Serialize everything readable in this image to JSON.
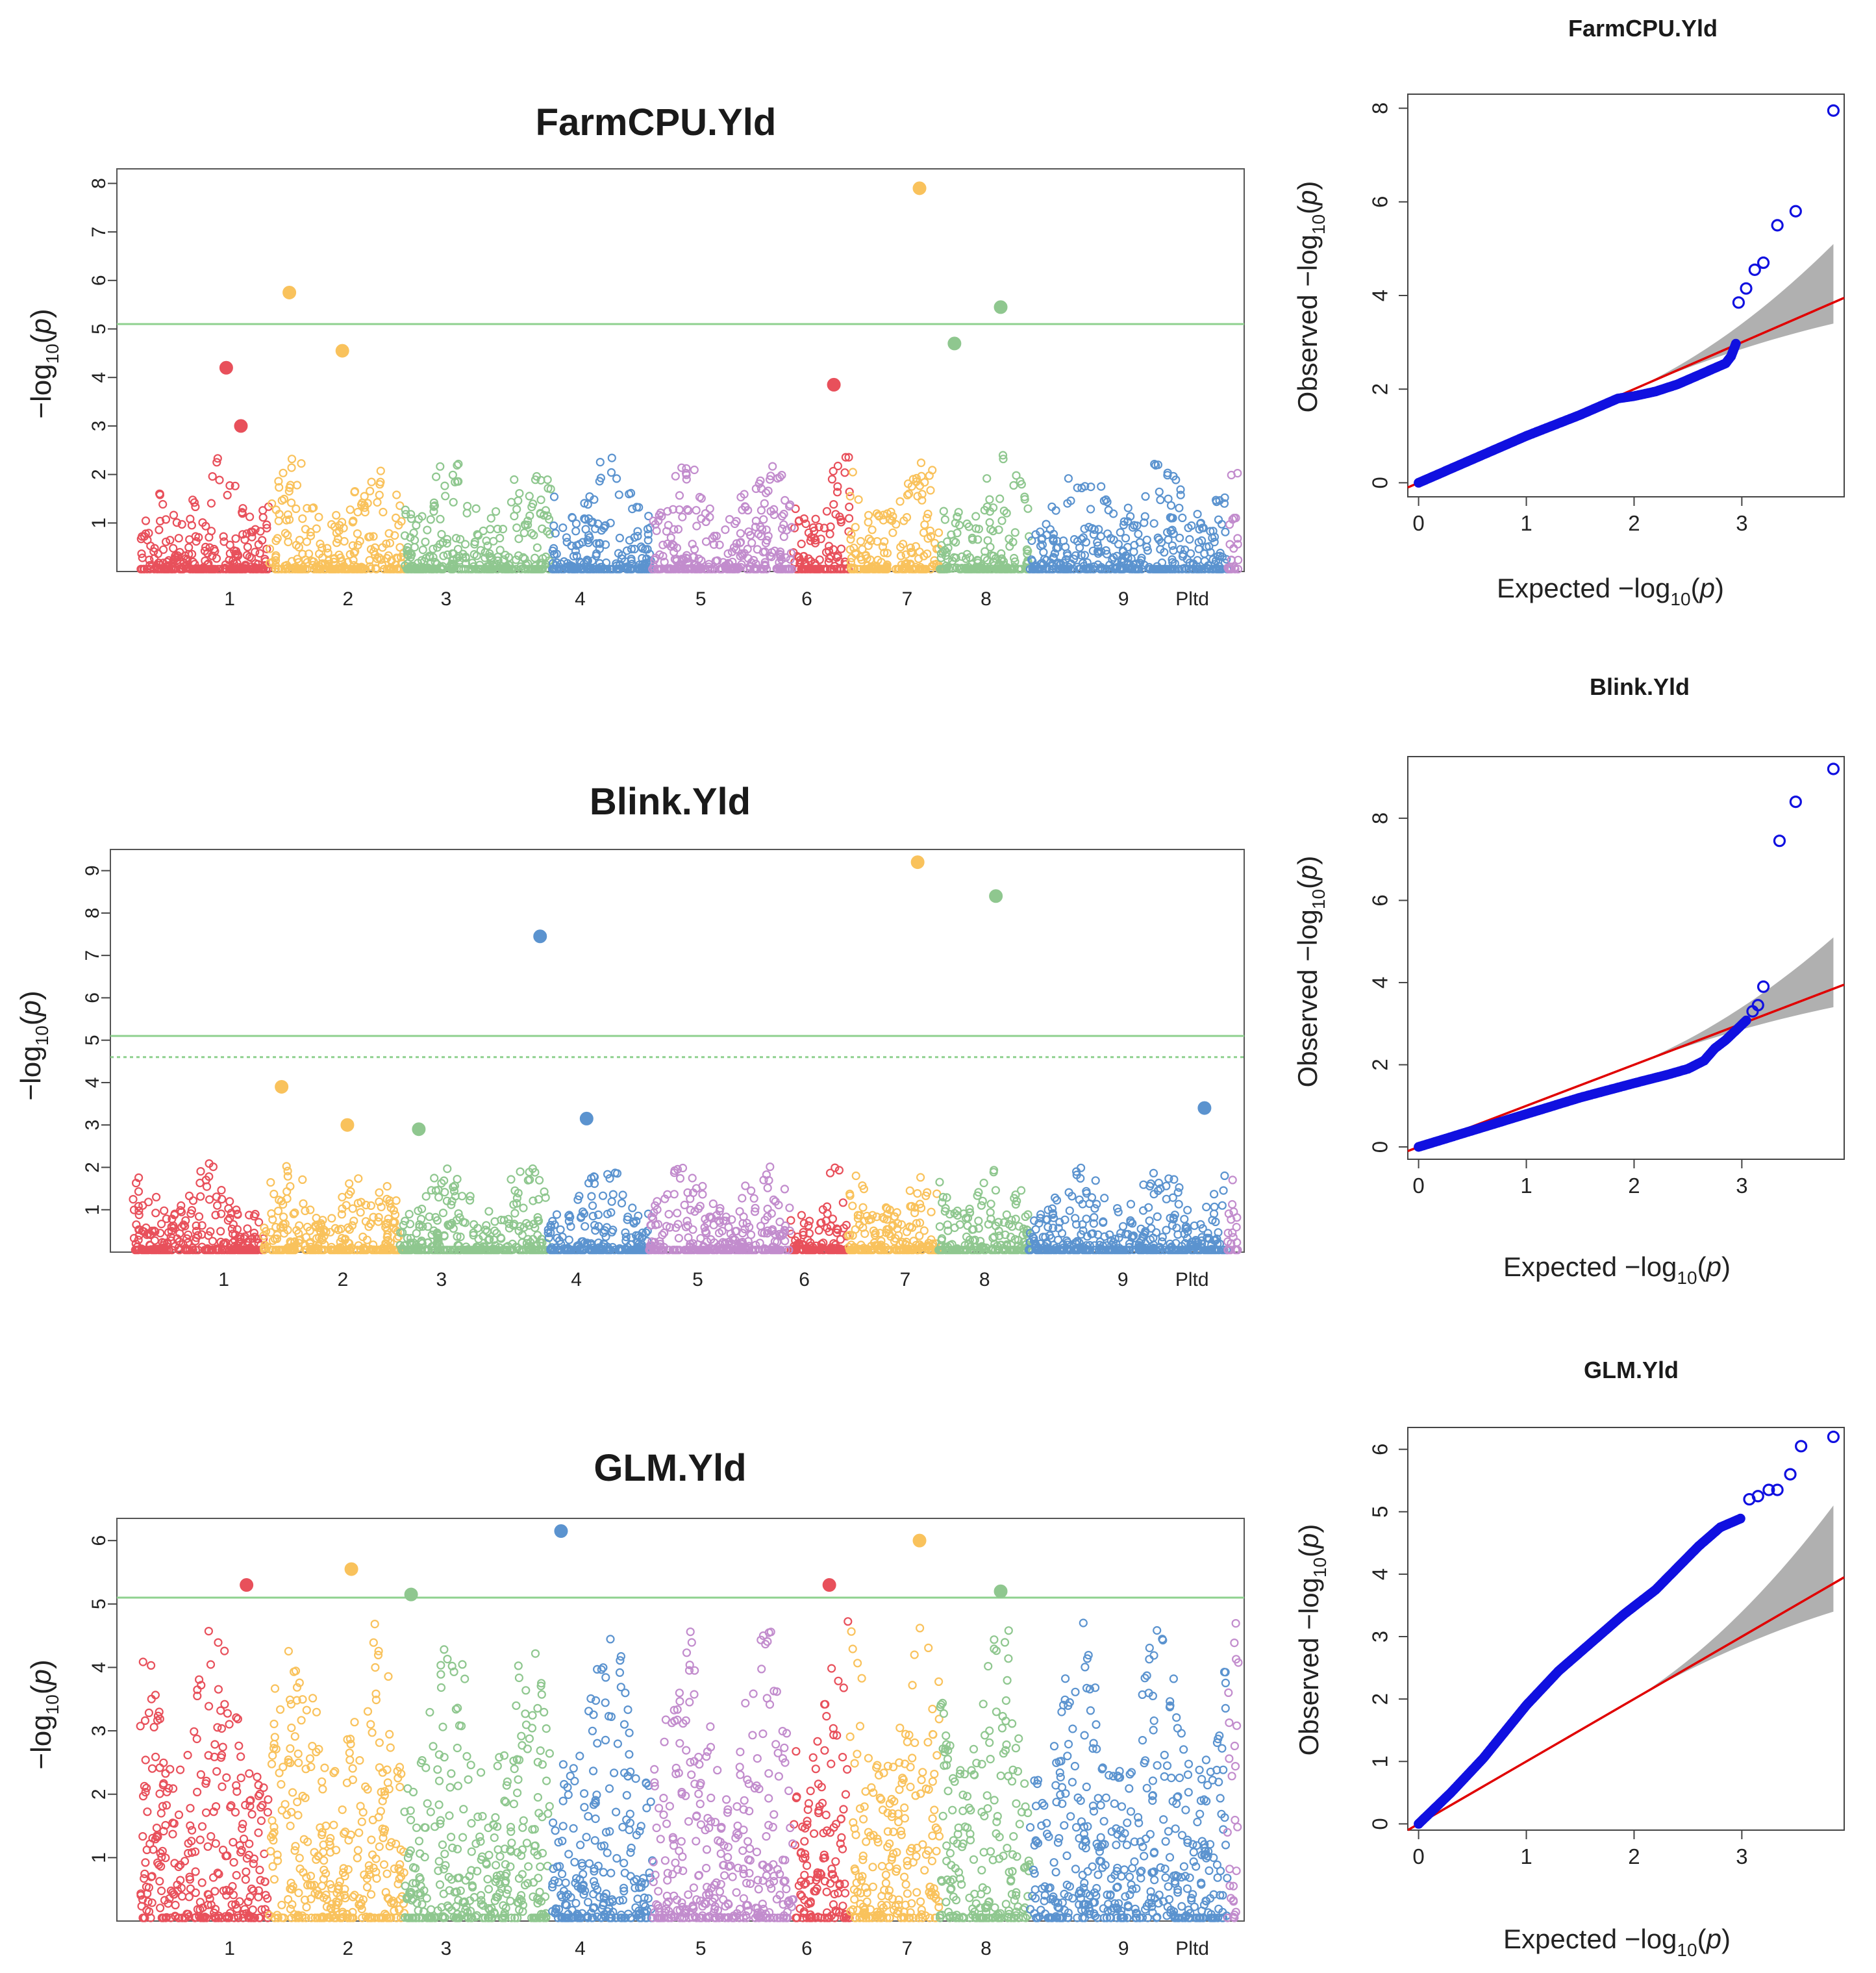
{
  "colors": {
    "chromosome_palette": [
      "#e8505b",
      "#f9c25c",
      "#8fc78f",
      "#5b93cf",
      "#c28ccd"
    ],
    "threshold": "#8fd18f",
    "qq_points": "#1010e0",
    "qq_line": "#e00000",
    "qq_band": "#b0b0b0"
  },
  "y_axis_label": "−log10(p)",
  "qq_axis_labels": {
    "x_prefix": "Expected  −log",
    "y_prefix": "Observed  −log",
    "base": "10",
    "p": "(p)"
  },
  "chromosome_labels": [
    "1",
    "2",
    "3",
    "4",
    "5",
    "6",
    "7",
    "8",
    "9",
    "Pltd"
  ],
  "chart_data": [
    {
      "type": "scatter",
      "kind": "manhattan",
      "title": "FarmCPU.Yld",
      "ylabel": "−log10(p)",
      "ylim": [
        0,
        8.3
      ],
      "yticks": [
        1,
        2,
        3,
        4,
        5,
        6,
        7,
        8
      ],
      "xticks": [
        {
          "label": "1",
          "pos": 0.1
        },
        {
          "label": "2",
          "pos": 0.205
        },
        {
          "label": "3",
          "pos": 0.292
        },
        {
          "label": "4",
          "pos": 0.411
        },
        {
          "label": "5",
          "pos": 0.518
        },
        {
          "label": "6",
          "pos": 0.612
        },
        {
          "label": "7",
          "pos": 0.701
        },
        {
          "label": "8",
          "pos": 0.771
        },
        {
          "label": "9",
          "pos": 0.893
        },
        {
          "label": "Pltd",
          "pos": 0.954
        }
      ],
      "thresholds": [
        {
          "value": 5.1,
          "style": "solid"
        }
      ],
      "highlight_points": [
        {
          "pos": 0.153,
          "value": 5.75,
          "color": "#f9c25c"
        },
        {
          "pos": 0.2,
          "value": 4.55,
          "color": "#f9c25c"
        },
        {
          "pos": 0.097,
          "value": 4.2,
          "color": "#e8505b"
        },
        {
          "pos": 0.11,
          "value": 3.0,
          "color": "#e8505b"
        },
        {
          "pos": 0.712,
          "value": 7.9,
          "color": "#f9c25c"
        },
        {
          "pos": 0.743,
          "value": 4.7,
          "color": "#8fc78f"
        },
        {
          "pos": 0.784,
          "value": 5.45,
          "color": "#8fc78f"
        },
        {
          "pos": 0.636,
          "value": 3.85,
          "color": "#e8505b"
        }
      ],
      "noise_max": 2.4,
      "seed": 11
    },
    {
      "type": "scatter",
      "kind": "manhattan",
      "title": "Blink.Yld",
      "ylabel": "−log10(p)",
      "ylim": [
        0,
        9.5
      ],
      "yticks": [
        1,
        2,
        3,
        4,
        5,
        6,
        7,
        8,
        9
      ],
      "xticks": [
        {
          "label": "1",
          "pos": 0.1
        },
        {
          "label": "2",
          "pos": 0.205
        },
        {
          "label": "3",
          "pos": 0.292
        },
        {
          "label": "4",
          "pos": 0.411
        },
        {
          "label": "5",
          "pos": 0.518
        },
        {
          "label": "6",
          "pos": 0.612
        },
        {
          "label": "7",
          "pos": 0.701
        },
        {
          "label": "8",
          "pos": 0.771
        },
        {
          "label": "9",
          "pos": 0.893
        },
        {
          "label": "Pltd",
          "pos": 0.954
        }
      ],
      "thresholds": [
        {
          "value": 5.1,
          "style": "solid"
        },
        {
          "value": 4.6,
          "style": "dotted"
        }
      ],
      "highlight_points": [
        {
          "pos": 0.379,
          "value": 7.45,
          "color": "#5b93cf"
        },
        {
          "pos": 0.712,
          "value": 9.2,
          "color": "#f9c25c"
        },
        {
          "pos": 0.781,
          "value": 8.4,
          "color": "#8fc78f"
        },
        {
          "pos": 0.151,
          "value": 3.9,
          "color": "#f9c25c"
        },
        {
          "pos": 0.209,
          "value": 3.0,
          "color": "#f9c25c"
        },
        {
          "pos": 0.272,
          "value": 2.9,
          "color": "#8fc78f"
        },
        {
          "pos": 0.42,
          "value": 3.15,
          "color": "#5b93cf"
        },
        {
          "pos": 0.965,
          "value": 3.4,
          "color": "#5b93cf"
        }
      ],
      "noise_max": 2.1,
      "seed": 23
    },
    {
      "type": "scatter",
      "kind": "manhattan",
      "title": "GLM.Yld",
      "ylabel": "−log10(p)",
      "ylim": [
        0,
        6.35
      ],
      "yticks": [
        1,
        2,
        3,
        4,
        5,
        6
      ],
      "xticks": [
        {
          "label": "1",
          "pos": 0.1
        },
        {
          "label": "2",
          "pos": 0.205
        },
        {
          "label": "3",
          "pos": 0.292
        },
        {
          "label": "4",
          "pos": 0.411
        },
        {
          "label": "5",
          "pos": 0.518
        },
        {
          "label": "6",
          "pos": 0.612
        },
        {
          "label": "7",
          "pos": 0.701
        },
        {
          "label": "8",
          "pos": 0.771
        },
        {
          "label": "9",
          "pos": 0.893
        },
        {
          "label": "Pltd",
          "pos": 0.954
        }
      ],
      "thresholds": [
        {
          "value": 5.1,
          "style": "solid"
        }
      ],
      "highlight_points": [
        {
          "pos": 0.394,
          "value": 6.15,
          "color": "#5b93cf"
        },
        {
          "pos": 0.712,
          "value": 6.0,
          "color": "#f9c25c"
        },
        {
          "pos": 0.208,
          "value": 5.55,
          "color": "#f9c25c"
        },
        {
          "pos": 0.115,
          "value": 5.3,
          "color": "#e8505b"
        },
        {
          "pos": 0.632,
          "value": 5.3,
          "color": "#e8505b"
        },
        {
          "pos": 0.261,
          "value": 5.15,
          "color": "#8fc78f"
        },
        {
          "pos": 0.784,
          "value": 5.2,
          "color": "#8fc78f"
        }
      ],
      "noise_max": 4.8,
      "seed": 37
    },
    {
      "type": "scatter",
      "kind": "qq",
      "title": "FarmCPU.Yld",
      "xlabel": "Expected −log10(p)",
      "ylabel": "Observed −log10(p)",
      "xlim": [
        -0.1,
        3.95
      ],
      "ylim": [
        -0.3,
        8.3
      ],
      "xticks": [
        0,
        1,
        2,
        3
      ],
      "yticks": [
        0,
        2,
        4,
        6,
        8
      ],
      "line": [
        [
          -0.1,
          -0.1
        ],
        [
          3.95,
          3.95
        ]
      ],
      "curve": [
        [
          0.0,
          0.0
        ],
        [
          0.5,
          0.5
        ],
        [
          1.0,
          1.0
        ],
        [
          1.5,
          1.45
        ],
        [
          1.85,
          1.8
        ],
        [
          2.0,
          1.85
        ],
        [
          2.2,
          1.95
        ],
        [
          2.4,
          2.1
        ],
        [
          2.6,
          2.3
        ],
        [
          2.75,
          2.45
        ],
        [
          2.85,
          2.55
        ],
        [
          2.9,
          2.7
        ],
        [
          2.95,
          3.0
        ]
      ],
      "tail": [
        [
          2.97,
          3.85
        ],
        [
          3.04,
          4.15
        ],
        [
          3.12,
          4.55
        ],
        [
          3.2,
          4.7
        ],
        [
          3.33,
          5.5
        ],
        [
          3.5,
          5.8
        ],
        [
          3.85,
          7.95
        ]
      ],
      "band_upper_end": 5.1,
      "band_lower_end": 3.4
    },
    {
      "type": "scatter",
      "kind": "qq",
      "title": "Blink.Yld",
      "xlabel": "Expected −log10(p)",
      "ylabel": "Observed −log10(p)",
      "xlim": [
        -0.1,
        3.95
      ],
      "ylim": [
        -0.3,
        9.5
      ],
      "xticks": [
        0,
        1,
        2,
        3
      ],
      "yticks": [
        0,
        2,
        4,
        6,
        8
      ],
      "line": [
        [
          -0.1,
          -0.1
        ],
        [
          3.95,
          3.95
        ]
      ],
      "curve": [
        [
          0.0,
          0.0
        ],
        [
          0.5,
          0.4
        ],
        [
          1.0,
          0.8
        ],
        [
          1.5,
          1.2
        ],
        [
          2.0,
          1.55
        ],
        [
          2.3,
          1.75
        ],
        [
          2.5,
          1.9
        ],
        [
          2.65,
          2.1
        ],
        [
          2.75,
          2.4
        ],
        [
          2.85,
          2.6
        ],
        [
          2.95,
          2.85
        ],
        [
          3.05,
          3.1
        ]
      ],
      "tail": [
        [
          3.1,
          3.3
        ],
        [
          3.15,
          3.45
        ],
        [
          3.2,
          3.9
        ],
        [
          3.35,
          7.45
        ],
        [
          3.5,
          8.4
        ],
        [
          3.85,
          9.2
        ]
      ],
      "band_upper_end": 5.1,
      "band_lower_end": 3.4
    },
    {
      "type": "scatter",
      "kind": "qq",
      "title": "GLM.Yld",
      "xlabel": "Expected −log10(p)",
      "ylabel": "Observed −log10(p)",
      "xlim": [
        -0.1,
        3.95
      ],
      "ylim": [
        -0.1,
        6.35
      ],
      "xticks": [
        0,
        1,
        2,
        3
      ],
      "yticks": [
        0,
        1,
        2,
        3,
        4,
        5,
        6
      ],
      "line": [
        [
          -0.1,
          -0.1
        ],
        [
          3.95,
          3.95
        ]
      ],
      "curve": [
        [
          0.0,
          0.0
        ],
        [
          0.3,
          0.5
        ],
        [
          0.6,
          1.05
        ],
        [
          1.0,
          1.9
        ],
        [
          1.3,
          2.45
        ],
        [
          1.6,
          2.9
        ],
        [
          1.9,
          3.35
        ],
        [
          2.2,
          3.75
        ],
        [
          2.4,
          4.1
        ],
        [
          2.6,
          4.45
        ],
        [
          2.8,
          4.75
        ],
        [
          3.0,
          4.9
        ]
      ],
      "tail": [
        [
          3.07,
          5.2
        ],
        [
          3.15,
          5.25
        ],
        [
          3.25,
          5.35
        ],
        [
          3.33,
          5.35
        ],
        [
          3.45,
          5.6
        ],
        [
          3.55,
          6.05
        ],
        [
          3.85,
          6.2
        ]
      ],
      "band_upper_end": 5.1,
      "band_lower_end": 3.4
    }
  ]
}
